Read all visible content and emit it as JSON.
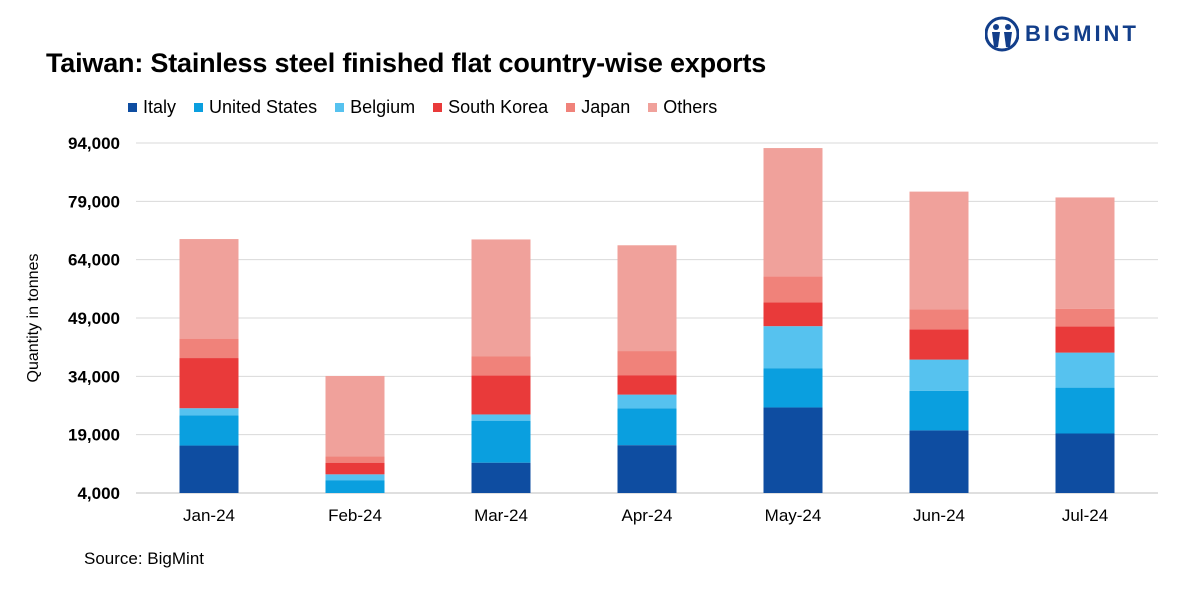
{
  "brand": {
    "name": "BIGMINT"
  },
  "source": "Source: BigMint",
  "chart_data": {
    "type": "bar",
    "stacked": true,
    "title": "Taiwan: Stainless steel finished flat country-wise exports",
    "xlabel": "",
    "ylabel": "Quantity in tonnes",
    "ylim": [
      4000,
      94000
    ],
    "yticks": [
      "4,000",
      "19,000",
      "34,000",
      "49,000",
      "64,000",
      "79,000",
      "94,000"
    ],
    "grid": true,
    "legend_position": "top",
    "categories": [
      "Jan-24",
      "Feb-24",
      "Mar-24",
      "Apr-24",
      "May-24",
      "Jun-24",
      "Jul-24"
    ],
    "series": [
      {
        "name": "Italy",
        "color": "#0e4da1",
        "values": [
          12200,
          0,
          7800,
          12300,
          22000,
          16100,
          15300
        ]
      },
      {
        "name": "United States",
        "color": "#0a9fdf",
        "values": [
          7800,
          3300,
          10800,
          9500,
          10100,
          10200,
          11800
        ]
      },
      {
        "name": "Belgium",
        "color": "#56c2ef",
        "values": [
          1800,
          1500,
          1600,
          3500,
          10800,
          8000,
          9000
        ]
      },
      {
        "name": "South Korea",
        "color": "#e93a3a",
        "values": [
          12900,
          3000,
          10000,
          5000,
          6100,
          7800,
          6700
        ]
      },
      {
        "name": "Japan",
        "color": "#f0827a",
        "values": [
          5000,
          1600,
          4900,
          6200,
          6700,
          5100,
          4600
        ]
      },
      {
        "name": "Others",
        "color": "#f0a19b",
        "values": [
          25600,
          20700,
          30100,
          27200,
          33000,
          30300,
          28600
        ]
      }
    ]
  }
}
